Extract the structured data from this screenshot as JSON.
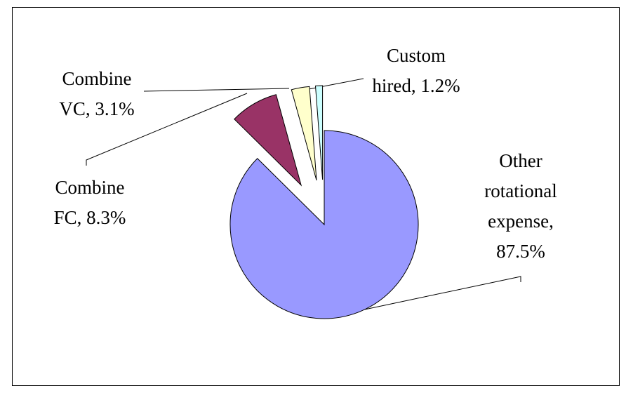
{
  "chart_data": {
    "type": "pie",
    "values": [
      87.5,
      8.3,
      3.1,
      1.2
    ],
    "value_labels": [
      "Other rotational expense, 87.5%",
      "Combine FC, 8.3%",
      "Combine VC, 3.1%",
      "Custom hired, 1.2%"
    ],
    "colors": [
      "#9999ff",
      "#993366",
      "#ffffcc",
      "#ccffff"
    ]
  }
}
